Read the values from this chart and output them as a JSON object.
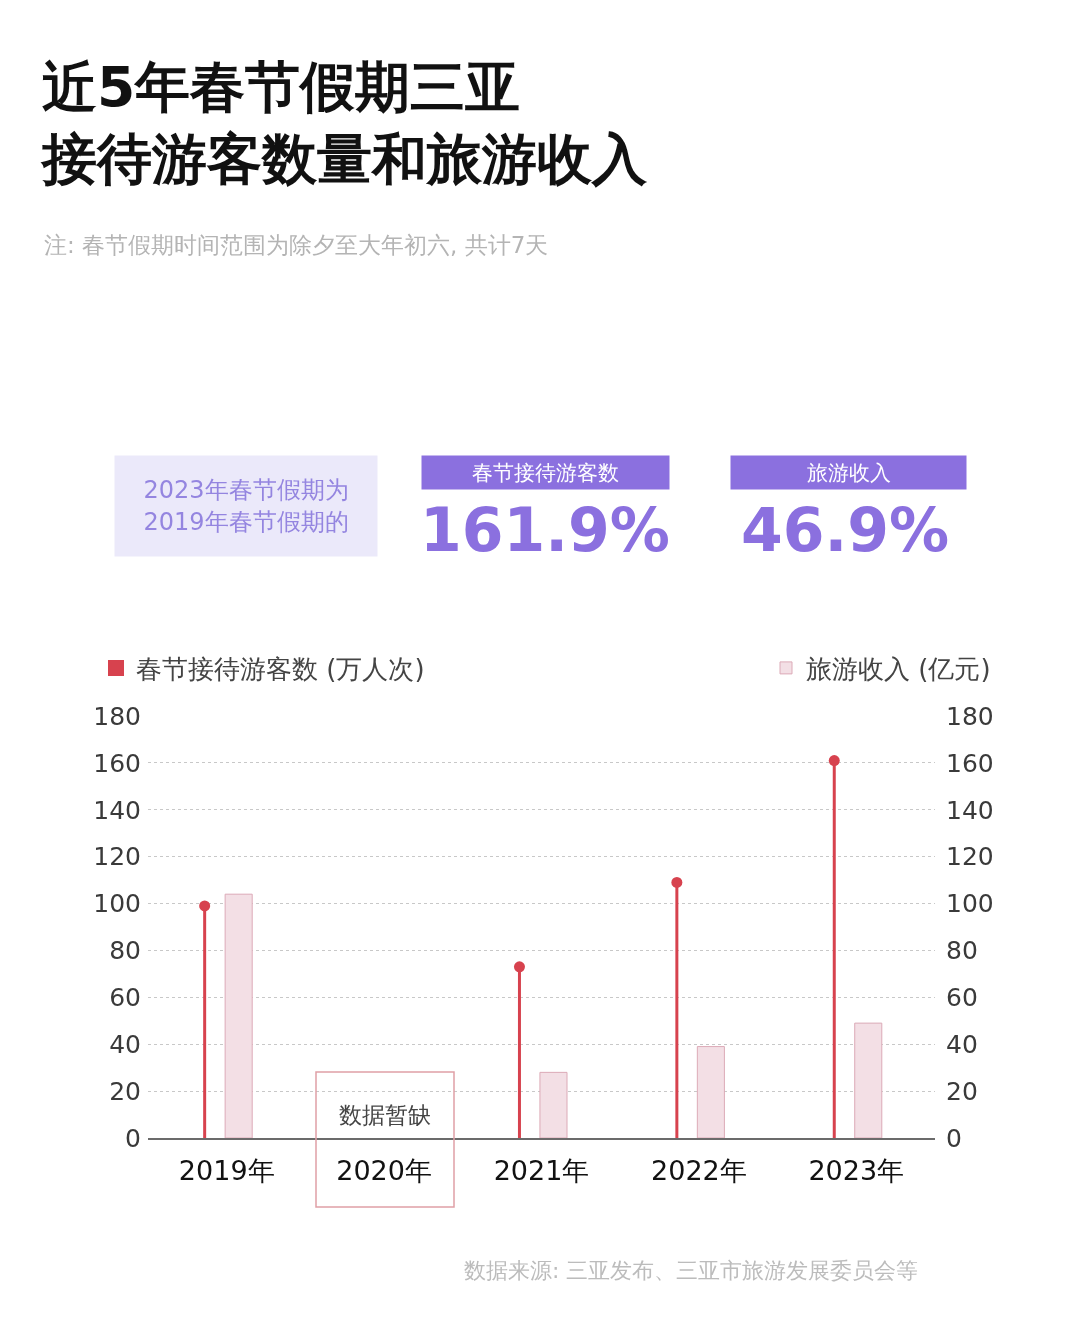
{
  "chart_data": {
    "type": "lollipop",
    "title": "近5年春节假期三亚接待游客数量和旅游收入",
    "subtitle": "注: 春节假期时间范围为除夕至大年初六, 共计7天",
    "categories": [
      "2019年",
      "2020年",
      "2021年",
      "2022年",
      "2023年"
    ],
    "series": [
      {
        "name": "春节接待游客数 (万人次)",
        "color": "#d7424e",
        "values": [
          99,
          null,
          73,
          109,
          161
        ]
      },
      {
        "name": "旅游收入 (亿元)",
        "type": "bar",
        "color": "#f3dfe5",
        "values": [
          104,
          null,
          28,
          39,
          49
        ],
        "axis": "y2"
      }
    ],
    "ylim": [
      0,
      180
    ],
    "yticks": [
      0,
      20,
      40,
      60,
      80,
      100,
      120,
      140,
      160,
      180
    ],
    "y2lim": [
      0,
      180
    ],
    "y2ticks": [
      0,
      20,
      40,
      60,
      80,
      100,
      120,
      140,
      160,
      180
    ],
    "grid": "y",
    "legend": "top",
    "marker": "circle",
    "annotations": [
      "数据暂缺",
      "2023年春节假期为\n2019年春节假期的",
      "春节接待游客数",
      "161.9%",
      "旅游收入",
      "46.9%",
      "数据来源: 三亚发布、三亚市旅游发展委员会等"
    ]
  }
}
